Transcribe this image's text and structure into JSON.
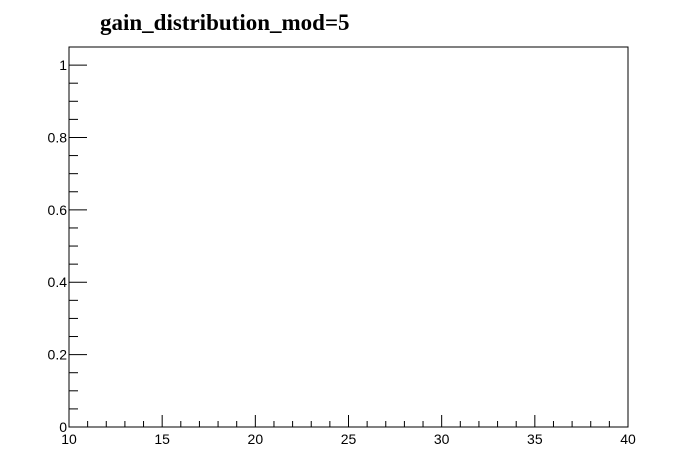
{
  "chart_data": {
    "type": "histogram",
    "title": "gain_distribution_mod=5",
    "xlabel": "",
    "ylabel": "",
    "xlim": [
      10,
      40
    ],
    "ylim": [
      0,
      1.05
    ],
    "x_ticks": [
      10,
      15,
      20,
      25,
      30,
      35,
      40
    ],
    "x_tick_labels": [
      "10",
      "15",
      "20",
      "25",
      "30",
      "35",
      "40"
    ],
    "y_ticks": [
      0,
      0.2,
      0.4,
      0.6,
      0.8,
      1
    ],
    "y_tick_labels": [
      "0",
      "0.2",
      "0.4",
      "0.6",
      "0.8",
      "1"
    ],
    "x_minor_step": 1,
    "y_minor_step": 0.05,
    "series": [],
    "grid": false,
    "legend": "none"
  }
}
